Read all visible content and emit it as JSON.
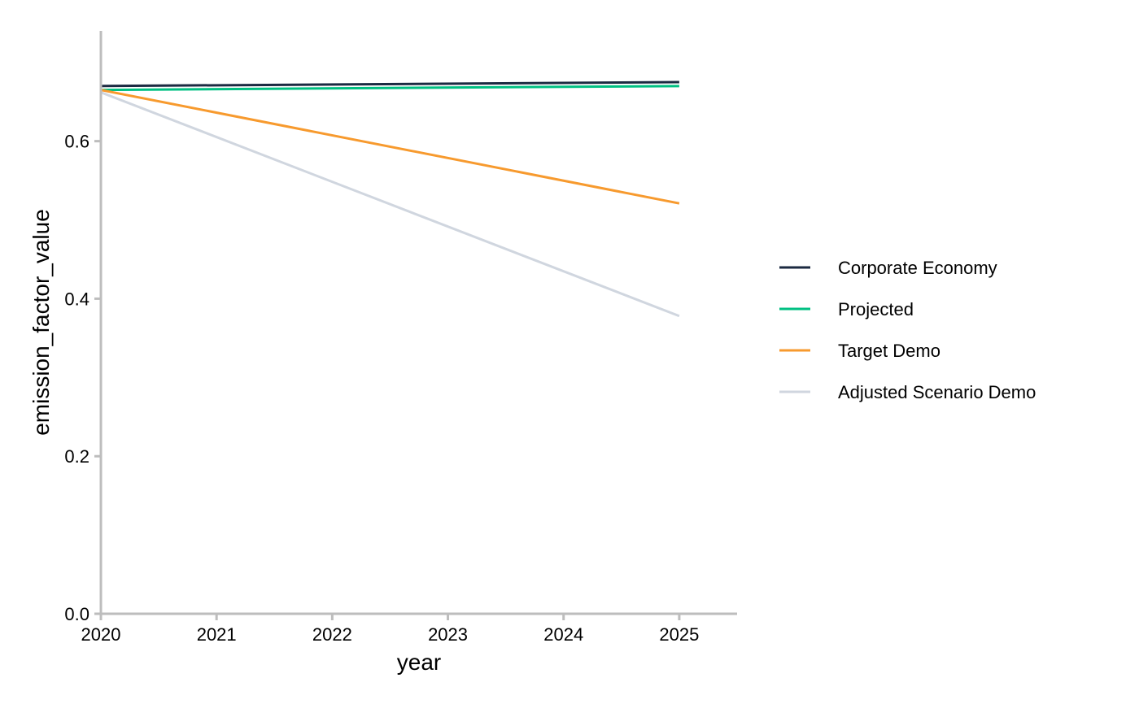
{
  "chart_data": {
    "type": "line",
    "title": "",
    "xlabel": "year",
    "ylabel": "emission_factor_value",
    "xlim": [
      2020,
      2025.5
    ],
    "ylim": [
      0,
      0.74
    ],
    "x_ticks": [
      "2020",
      "2021",
      "2022",
      "2023",
      "2024",
      "2025"
    ],
    "y_ticks": [
      "0.0",
      "0.2",
      "0.4",
      "0.6"
    ],
    "grid": false,
    "legend_position": "right",
    "x": [
      2020,
      2025
    ],
    "series": [
      {
        "name": "Corporate Economy",
        "color": "#1b2a41",
        "values": [
          0.67,
          0.675
        ]
      },
      {
        "name": "Projected",
        "color": "#00c082",
        "values": [
          0.665,
          0.67
        ]
      },
      {
        "name": "Target Demo",
        "color": "#f79a2e",
        "values": [
          0.665,
          0.521
        ]
      },
      {
        "name": "Adjusted Scenario Demo",
        "color": "#d0d6df",
        "values": [
          0.662,
          0.378
        ]
      }
    ]
  }
}
